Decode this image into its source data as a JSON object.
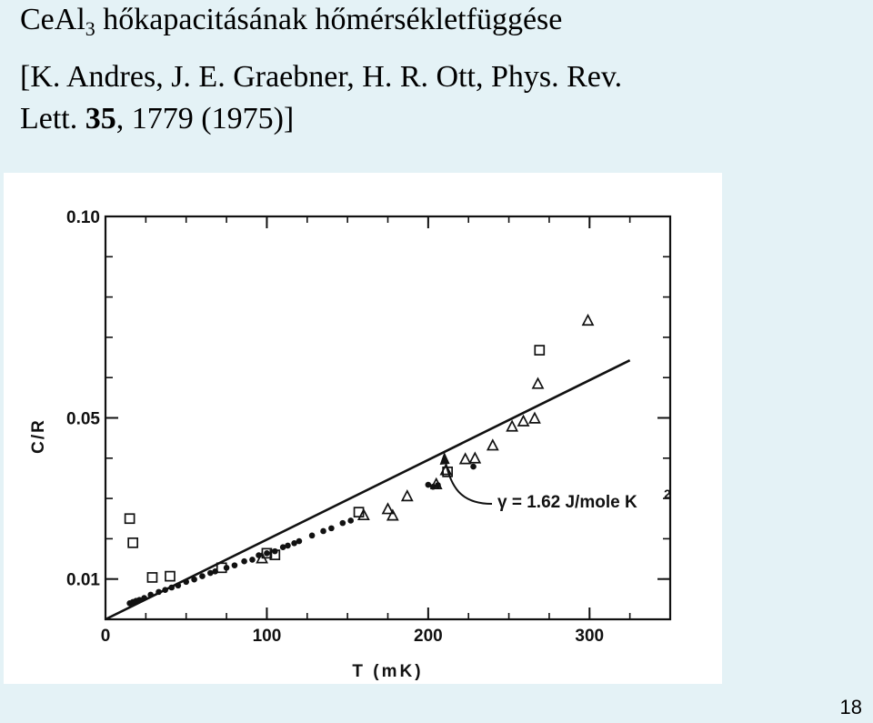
{
  "slide": {
    "title_main": "CeAl",
    "title_sub": "3",
    "title_rest": " hőkapacitásának hőmérsékletfüggése",
    "citation_line1": "[K. Andres, J. E. Graebner, H. R. Ott, Phys. Rev.",
    "citation_line2_pre": "Lett. ",
    "citation_volume": "35",
    "citation_line2_post": ", 1779 (1975)]",
    "page_number": "18"
  },
  "chart_data": {
    "type": "scatter",
    "xlabel": "T (mK)",
    "ylabel": "C/R",
    "xlim": [
      0,
      350
    ],
    "ylim": [
      0,
      0.1
    ],
    "x_ticks": [
      {
        "value": 0,
        "label": "0"
      },
      {
        "value": 100,
        "label": "100"
      },
      {
        "value": 200,
        "label": "200"
      },
      {
        "value": 300,
        "label": "300"
      }
    ],
    "y_ticks": [
      {
        "value": 0.01,
        "label": "0.01"
      },
      {
        "value": 0.05,
        "label": "0.05"
      },
      {
        "value": 0.1,
        "label": "0.10"
      }
    ],
    "x_minor_step": 25,
    "y_minor_step": 0.01,
    "grid": false,
    "legend": "none",
    "series": [
      {
        "marker": "dot",
        "points": [
          [
            15,
            0.004
          ],
          [
            17,
            0.0043
          ],
          [
            19,
            0.0046
          ],
          [
            21,
            0.0048
          ],
          [
            24,
            0.0053
          ],
          [
            28,
            0.0061
          ],
          [
            33,
            0.0068
          ],
          [
            37,
            0.0073
          ],
          [
            41,
            0.0079
          ],
          [
            45,
            0.0084
          ],
          [
            50,
            0.0093
          ],
          [
            55,
            0.0099
          ],
          [
            60,
            0.0107
          ],
          [
            65,
            0.0115
          ],
          [
            68,
            0.0119
          ],
          [
            75,
            0.0128
          ],
          [
            80,
            0.0134
          ],
          [
            86,
            0.0144
          ],
          [
            91,
            0.0148
          ],
          [
            95,
            0.0159
          ],
          [
            100,
            0.0164
          ],
          [
            105,
            0.0169
          ],
          [
            110,
            0.0179
          ],
          [
            113,
            0.0183
          ],
          [
            117,
            0.0189
          ],
          [
            120,
            0.0194
          ],
          [
            128,
            0.0208
          ],
          [
            135,
            0.0219
          ],
          [
            140,
            0.0226
          ],
          [
            147,
            0.0239
          ],
          [
            152,
            0.0245
          ],
          [
            200,
            0.0334
          ],
          [
            203,
            0.0329
          ],
          [
            206,
            0.0333
          ],
          [
            228,
            0.0379
          ]
        ]
      },
      {
        "marker": "square",
        "points": [
          [
            15,
            0.025
          ],
          [
            17,
            0.019
          ],
          [
            29,
            0.0104
          ],
          [
            40,
            0.0107
          ],
          [
            72,
            0.0128
          ],
          [
            100,
            0.0164
          ],
          [
            105,
            0.016
          ],
          [
            157,
            0.0266
          ],
          [
            212,
            0.0366
          ],
          [
            269,
            0.0668
          ]
        ]
      },
      {
        "marker": "triangle",
        "points": [
          [
            97,
            0.0151
          ],
          [
            160,
            0.0258
          ],
          [
            175,
            0.0273
          ],
          [
            178,
            0.0257
          ],
          [
            187,
            0.0305
          ],
          [
            205,
            0.0335
          ],
          [
            211,
            0.037
          ],
          [
            223,
            0.0397
          ],
          [
            229,
            0.0399
          ],
          [
            240,
            0.0431
          ],
          [
            252,
            0.0478
          ],
          [
            259,
            0.0491
          ],
          [
            266,
            0.0498
          ],
          [
            268,
            0.0584
          ],
          [
            299,
            0.0741
          ]
        ]
      }
    ],
    "fit_line": {
      "x": [
        0,
        325
      ],
      "y": [
        0,
        0.0643
      ]
    },
    "annotation": {
      "text": "γ = 1.62 J/mole K",
      "superscript": "2",
      "arrow_target": [
        210,
        0.0413
      ]
    }
  }
}
